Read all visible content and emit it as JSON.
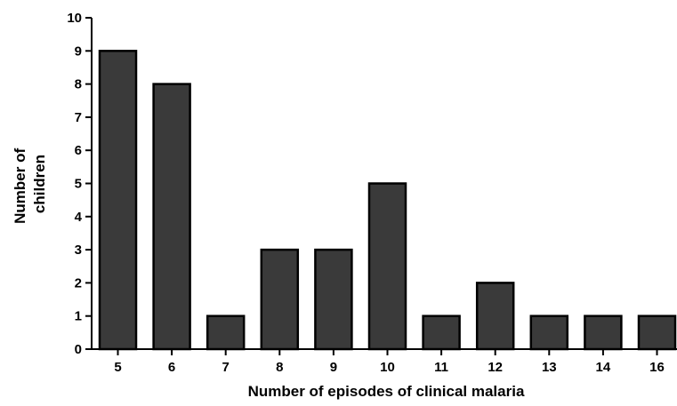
{
  "chart_data": {
    "type": "bar",
    "categories": [
      "5",
      "6",
      "7",
      "8",
      "9",
      "10",
      "11",
      "12",
      "13",
      "14",
      "16"
    ],
    "values": [
      9,
      8,
      1,
      3,
      3,
      5,
      1,
      2,
      1,
      1,
      1
    ],
    "xlabel": "Number of episodes of clinical malaria",
    "ylabel_lines": [
      "Number of",
      "children"
    ],
    "ylim": [
      0,
      10
    ],
    "yticks": [
      0,
      1,
      2,
      3,
      4,
      5,
      6,
      7,
      8,
      9,
      10
    ],
    "grid": false,
    "bar_color": "#3a3a3a",
    "bar_edge_color": "#000000"
  }
}
